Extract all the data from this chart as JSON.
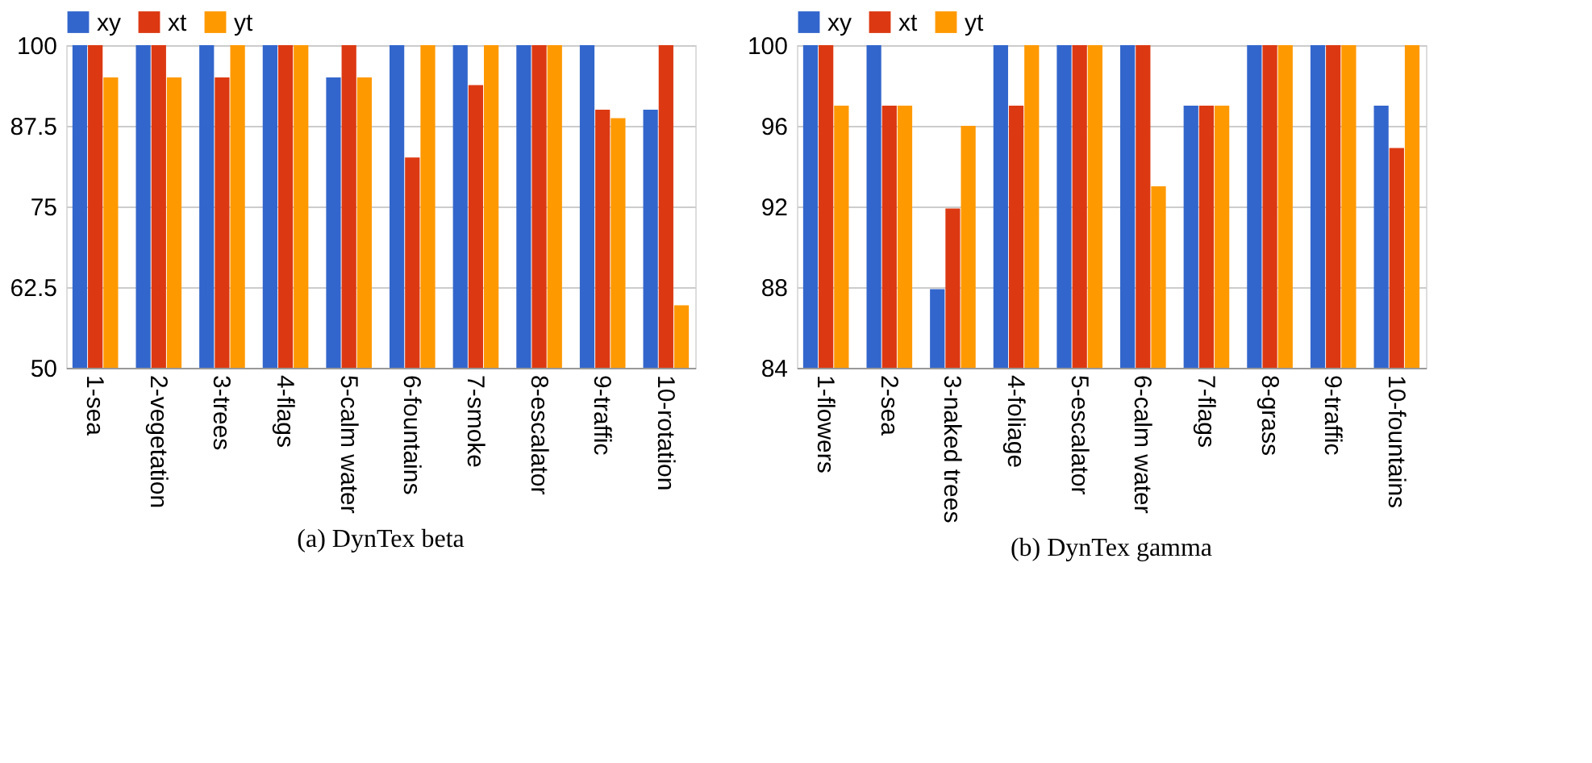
{
  "chart_data": [
    {
      "type": "bar",
      "title": "(a) DynTex beta",
      "categories": [
        "1-sea",
        "2-vegetation",
        "3-trees",
        "4-flags",
        "5-calm water",
        "6-fountains",
        "7-smoke",
        "8-escalator",
        "9-traffic",
        "10-rotation"
      ],
      "series": [
        {
          "name": "xy",
          "color": "#3366cc",
          "values": [
            100,
            100,
            100,
            100,
            95,
            100,
            100,
            100,
            100,
            90
          ]
        },
        {
          "name": "xt",
          "color": "#dc3912",
          "values": [
            100,
            100,
            95,
            100,
            100,
            82.6,
            93.8,
            100,
            90,
            100
          ]
        },
        {
          "name": "yt",
          "color": "#ff9900",
          "values": [
            95,
            95,
            100,
            100,
            95,
            100,
            100,
            100,
            88.7,
            59.7
          ]
        }
      ],
      "ylim": [
        50,
        100
      ],
      "yticks": [
        50,
        62.5,
        75,
        87.5,
        100
      ],
      "grid": "y",
      "legend": "top left"
    },
    {
      "type": "bar",
      "title": "(b) DynTex gamma",
      "categories": [
        "1-flowers",
        "2-sea",
        "3-naked trees",
        "4-foliage",
        "5-escalator",
        "6-calm water",
        "7-flags",
        "8-grass",
        "9-traffic",
        "10-fountains"
      ],
      "series": [
        {
          "name": "xy",
          "color": "#3366cc",
          "values": [
            100,
            100,
            87.9,
            100,
            100,
            100,
            97,
            100,
            100,
            97
          ]
        },
        {
          "name": "xt",
          "color": "#dc3912",
          "values": [
            100,
            97,
            91.9,
            97,
            100,
            100,
            97,
            100,
            100,
            94.9
          ]
        },
        {
          "name": "yt",
          "color": "#ff9900",
          "values": [
            97,
            97,
            96,
            100,
            100,
            93,
            97,
            100,
            100,
            100
          ]
        }
      ],
      "ylim": [
        84,
        100
      ],
      "yticks": [
        84,
        88,
        92,
        96,
        100
      ],
      "grid": "y",
      "legend": "top left"
    }
  ]
}
